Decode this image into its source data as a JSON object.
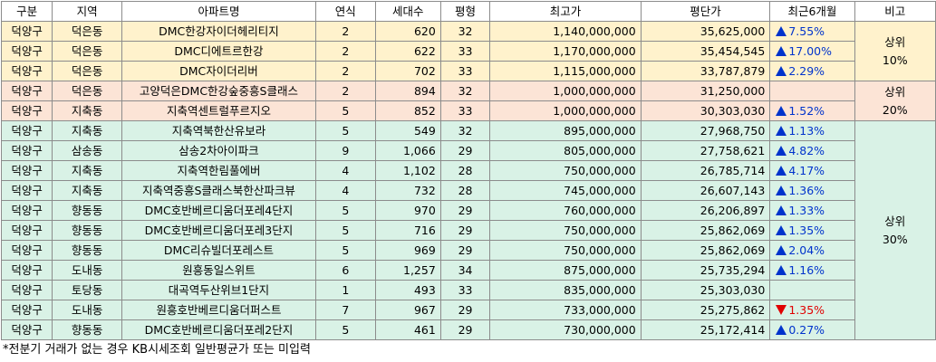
{
  "headers": [
    "구분",
    "지역",
    "아파트명",
    "연식",
    "세대수",
    "평형",
    "최고가",
    "평단가",
    "최근6개월",
    "비고"
  ],
  "rows": [
    {
      "gu": "덕양구",
      "dong": "덕은동",
      "name": "DMC한강자이더헤리티지",
      "age": "2",
      "units": "620",
      "size": "32",
      "max": "1,140,000,000",
      "ppy": "35,625,000",
      "dir": "up",
      "chg": "7.55%",
      "group": "g1"
    },
    {
      "gu": "덕양구",
      "dong": "덕은동",
      "name": "DMC디에트르한강",
      "age": "2",
      "units": "622",
      "size": "33",
      "max": "1,170,000,000",
      "ppy": "35,454,545",
      "dir": "up",
      "chg": "17.00%",
      "group": "g1"
    },
    {
      "gu": "덕양구",
      "dong": "덕은동",
      "name": "DMC자이더리버",
      "age": "2",
      "units": "702",
      "size": "33",
      "max": "1,115,000,000",
      "ppy": "33,787,879",
      "dir": "up",
      "chg": "2.29%",
      "group": "g1"
    },
    {
      "gu": "덕양구",
      "dong": "덕은동",
      "name": "고양덕은DMC한강숲중흥S클래스",
      "age": "2",
      "units": "894",
      "size": "32",
      "max": "1,000,000,000",
      "ppy": "31,250,000",
      "dir": "",
      "chg": "",
      "group": "g2"
    },
    {
      "gu": "덕양구",
      "dong": "지축동",
      "name": "지축역센트럴푸르지오",
      "age": "5",
      "units": "852",
      "size": "33",
      "max": "1,000,000,000",
      "ppy": "30,303,030",
      "dir": "up",
      "chg": "1.52%",
      "group": "g2"
    },
    {
      "gu": "덕양구",
      "dong": "지축동",
      "name": "지축역북한산유보라",
      "age": "5",
      "units": "549",
      "size": "32",
      "max": "895,000,000",
      "ppy": "27,968,750",
      "dir": "up",
      "chg": "1.13%",
      "group": "g3"
    },
    {
      "gu": "덕양구",
      "dong": "삼송동",
      "name": "삼송2차아이파크",
      "age": "9",
      "units": "1,066",
      "size": "29",
      "max": "805,000,000",
      "ppy": "27,758,621",
      "dir": "up",
      "chg": "4.82%",
      "group": "g3"
    },
    {
      "gu": "덕양구",
      "dong": "지축동",
      "name": "지축역한림풀에버",
      "age": "4",
      "units": "1,102",
      "size": "28",
      "max": "750,000,000",
      "ppy": "26,785,714",
      "dir": "up",
      "chg": "4.17%",
      "group": "g3"
    },
    {
      "gu": "덕양구",
      "dong": "지축동",
      "name": "지축역중흥S클래스북한산파크뷰",
      "age": "4",
      "units": "732",
      "size": "28",
      "max": "745,000,000",
      "ppy": "26,607,143",
      "dir": "up",
      "chg": "1.36%",
      "group": "g3"
    },
    {
      "gu": "덕양구",
      "dong": "향동동",
      "name": "DMC호반베르디움더포레4단지",
      "age": "5",
      "units": "970",
      "size": "29",
      "max": "760,000,000",
      "ppy": "26,206,897",
      "dir": "up",
      "chg": "1.33%",
      "group": "g3"
    },
    {
      "gu": "덕양구",
      "dong": "향동동",
      "name": "DMC호반베르디움더포레3단지",
      "age": "5",
      "units": "716",
      "size": "29",
      "max": "750,000,000",
      "ppy": "25,862,069",
      "dir": "up",
      "chg": "1.35%",
      "group": "g3"
    },
    {
      "gu": "덕양구",
      "dong": "향동동",
      "name": "DMC리슈빌더포레스트",
      "age": "5",
      "units": "969",
      "size": "29",
      "max": "750,000,000",
      "ppy": "25,862,069",
      "dir": "up",
      "chg": "2.04%",
      "group": "g3"
    },
    {
      "gu": "덕양구",
      "dong": "도내동",
      "name": "원흥동일스위트",
      "age": "6",
      "units": "1,257",
      "size": "34",
      "max": "875,000,000",
      "ppy": "25,735,294",
      "dir": "up",
      "chg": "1.16%",
      "group": "g3"
    },
    {
      "gu": "덕양구",
      "dong": "토당동",
      "name": "대곡역두산위브1단지",
      "age": "1",
      "units": "493",
      "size": "33",
      "max": "835,000,000",
      "ppy": "25,303,030",
      "dir": "",
      "chg": "",
      "group": "g3"
    },
    {
      "gu": "덕양구",
      "dong": "도내동",
      "name": "원흥호반베르디움더퍼스트",
      "age": "7",
      "units": "967",
      "size": "29",
      "max": "733,000,000",
      "ppy": "25,275,862",
      "dir": "down",
      "chg": "1.35%",
      "group": "g3"
    },
    {
      "gu": "덕양구",
      "dong": "향동동",
      "name": "DMC호반베르디움더포레2단지",
      "age": "5",
      "units": "461",
      "size": "29",
      "max": "730,000,000",
      "ppy": "25,172,414",
      "dir": "up",
      "chg": "0.27%",
      "group": "g3"
    }
  ],
  "notes": [
    {
      "line1": "상위",
      "line2": "10%",
      "rows": 3,
      "group": "g1"
    },
    {
      "line1": "상위",
      "line2": "20%",
      "rows": 2,
      "group": "g2"
    },
    {
      "line1": "상위",
      "line2": "30%",
      "rows": 11,
      "group": "g3"
    }
  ],
  "footer": "*전분기 거래가 없는 경우 KB시세조회 일반평균가 또는 미입력"
}
